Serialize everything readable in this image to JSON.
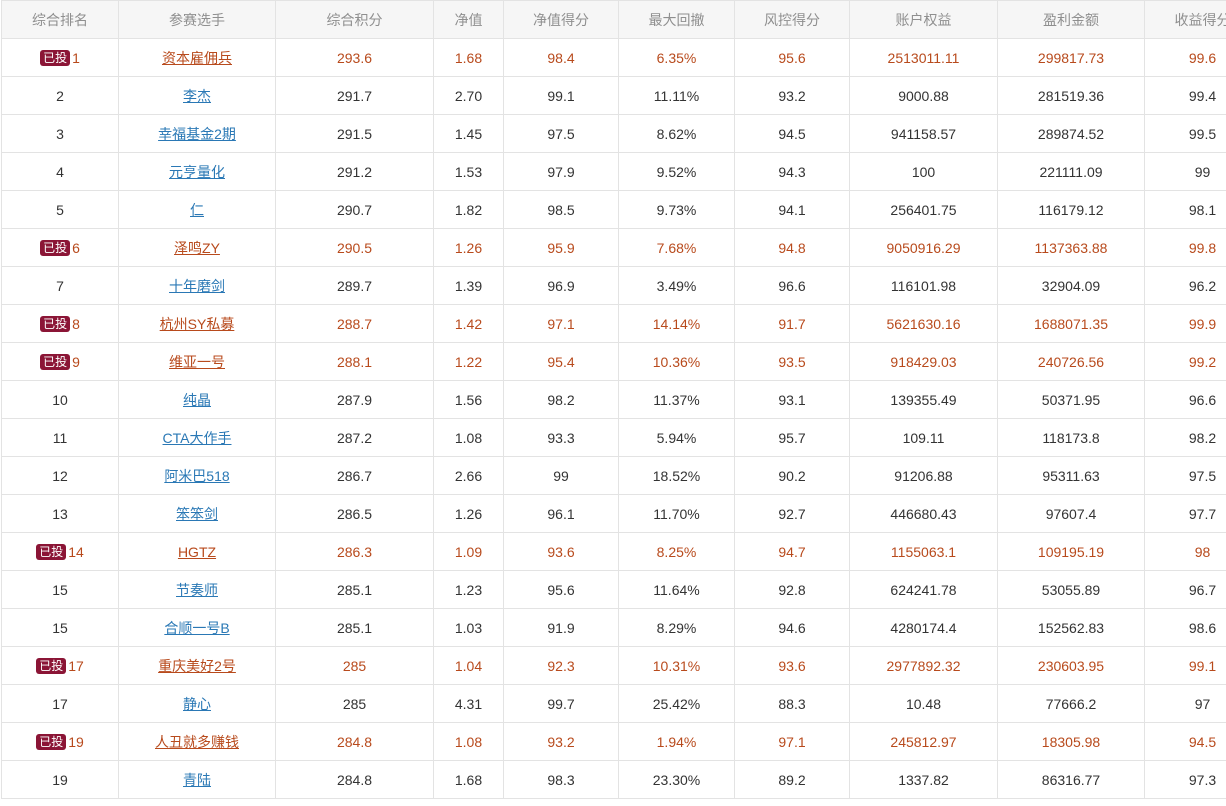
{
  "table": {
    "columns": [
      "综合排名",
      "参赛选手",
      "综合积分",
      "净值",
      "净值得分",
      "最大回撤",
      "风控得分",
      "账户权益",
      "盈利金额",
      "收益得分"
    ],
    "badge_label": "已投",
    "rows": [
      {
        "invested": true,
        "rank": "1",
        "name": "资本雇佣兵",
        "score": "293.6",
        "nav": "1.68",
        "nav_score": "98.4",
        "max_drawdown": "6.35%",
        "risk_score": "95.6",
        "equity": "2513011.11",
        "profit": "299817.73",
        "return_score": "99.6"
      },
      {
        "invested": false,
        "rank": "2",
        "name": "李杰",
        "score": "291.7",
        "nav": "2.70",
        "nav_score": "99.1",
        "max_drawdown": "11.11%",
        "risk_score": "93.2",
        "equity": "9000.88",
        "profit": "281519.36",
        "return_score": "99.4"
      },
      {
        "invested": false,
        "rank": "3",
        "name": "幸福基金2期",
        "score": "291.5",
        "nav": "1.45",
        "nav_score": "97.5",
        "max_drawdown": "8.62%",
        "risk_score": "94.5",
        "equity": "941158.57",
        "profit": "289874.52",
        "return_score": "99.5"
      },
      {
        "invested": false,
        "rank": "4",
        "name": "元亨量化",
        "score": "291.2",
        "nav": "1.53",
        "nav_score": "97.9",
        "max_drawdown": "9.52%",
        "risk_score": "94.3",
        "equity": "100",
        "profit": "221111.09",
        "return_score": "99"
      },
      {
        "invested": false,
        "rank": "5",
        "name": "仁",
        "score": "290.7",
        "nav": "1.82",
        "nav_score": "98.5",
        "max_drawdown": "9.73%",
        "risk_score": "94.1",
        "equity": "256401.75",
        "profit": "116179.12",
        "return_score": "98.1"
      },
      {
        "invested": true,
        "rank": "6",
        "name": "泽鸣ZY",
        "score": "290.5",
        "nav": "1.26",
        "nav_score": "95.9",
        "max_drawdown": "7.68%",
        "risk_score": "94.8",
        "equity": "9050916.29",
        "profit": "1137363.88",
        "return_score": "99.8"
      },
      {
        "invested": false,
        "rank": "7",
        "name": "十年磨剑",
        "score": "289.7",
        "nav": "1.39",
        "nav_score": "96.9",
        "max_drawdown": "3.49%",
        "risk_score": "96.6",
        "equity": "116101.98",
        "profit": "32904.09",
        "return_score": "96.2"
      },
      {
        "invested": true,
        "rank": "8",
        "name": "杭州SY私募",
        "score": "288.7",
        "nav": "1.42",
        "nav_score": "97.1",
        "max_drawdown": "14.14%",
        "risk_score": "91.7",
        "equity": "5621630.16",
        "profit": "1688071.35",
        "return_score": "99.9"
      },
      {
        "invested": true,
        "rank": "9",
        "name": "维亚一号",
        "score": "288.1",
        "nav": "1.22",
        "nav_score": "95.4",
        "max_drawdown": "10.36%",
        "risk_score": "93.5",
        "equity": "918429.03",
        "profit": "240726.56",
        "return_score": "99.2"
      },
      {
        "invested": false,
        "rank": "10",
        "name": "纯晶",
        "score": "287.9",
        "nav": "1.56",
        "nav_score": "98.2",
        "max_drawdown": "11.37%",
        "risk_score": "93.1",
        "equity": "139355.49",
        "profit": "50371.95",
        "return_score": "96.6"
      },
      {
        "invested": false,
        "rank": "11",
        "name": "CTA大作手",
        "score": "287.2",
        "nav": "1.08",
        "nav_score": "93.3",
        "max_drawdown": "5.94%",
        "risk_score": "95.7",
        "equity": "109.11",
        "profit": "118173.8",
        "return_score": "98.2"
      },
      {
        "invested": false,
        "rank": "12",
        "name": "阿米巴518",
        "score": "286.7",
        "nav": "2.66",
        "nav_score": "99",
        "max_drawdown": "18.52%",
        "risk_score": "90.2",
        "equity": "91206.88",
        "profit": "95311.63",
        "return_score": "97.5"
      },
      {
        "invested": false,
        "rank": "13",
        "name": "笨笨剑",
        "score": "286.5",
        "nav": "1.26",
        "nav_score": "96.1",
        "max_drawdown": "11.70%",
        "risk_score": "92.7",
        "equity": "446680.43",
        "profit": "97607.4",
        "return_score": "97.7"
      },
      {
        "invested": true,
        "rank": "14",
        "name": "HGTZ",
        "score": "286.3",
        "nav": "1.09",
        "nav_score": "93.6",
        "max_drawdown": "8.25%",
        "risk_score": "94.7",
        "equity": "1155063.1",
        "profit": "109195.19",
        "return_score": "98"
      },
      {
        "invested": false,
        "rank": "15",
        "name": "节奏师",
        "score": "285.1",
        "nav": "1.23",
        "nav_score": "95.6",
        "max_drawdown": "11.64%",
        "risk_score": "92.8",
        "equity": "624241.78",
        "profit": "53055.89",
        "return_score": "96.7"
      },
      {
        "invested": false,
        "rank": "15",
        "name": "合顺一号B",
        "score": "285.1",
        "nav": "1.03",
        "nav_score": "91.9",
        "max_drawdown": "8.29%",
        "risk_score": "94.6",
        "equity": "4280174.4",
        "profit": "152562.83",
        "return_score": "98.6"
      },
      {
        "invested": true,
        "rank": "17",
        "name": "重庆美好2号",
        "score": "285",
        "nav": "1.04",
        "nav_score": "92.3",
        "max_drawdown": "10.31%",
        "risk_score": "93.6",
        "equity": "2977892.32",
        "profit": "230603.95",
        "return_score": "99.1"
      },
      {
        "invested": false,
        "rank": "17",
        "name": "静心",
        "score": "285",
        "nav": "4.31",
        "nav_score": "99.7",
        "max_drawdown": "25.42%",
        "risk_score": "88.3",
        "equity": "10.48",
        "profit": "77666.2",
        "return_score": "97"
      },
      {
        "invested": true,
        "rank": "19",
        "name": "人丑就多赚钱",
        "score": "284.8",
        "nav": "1.08",
        "nav_score": "93.2",
        "max_drawdown": "1.94%",
        "risk_score": "97.1",
        "equity": "245812.97",
        "profit": "18305.98",
        "return_score": "94.5"
      },
      {
        "invested": false,
        "rank": "19",
        "name": "青陆",
        "score": "284.8",
        "nav": "1.68",
        "nav_score": "98.3",
        "max_drawdown": "23.30%",
        "risk_score": "89.2",
        "equity": "1337.82",
        "profit": "86316.77",
        "return_score": "97.3"
      }
    ]
  },
  "colors": {
    "header_bg": "#f6f6f6",
    "header_text": "#8f8f8f",
    "grid_line": "#e3e3e3",
    "normal_text": "#333333",
    "invested_text": "#b84a1c",
    "link": "#2a78b5",
    "badge_bg": "#8b1536"
  }
}
